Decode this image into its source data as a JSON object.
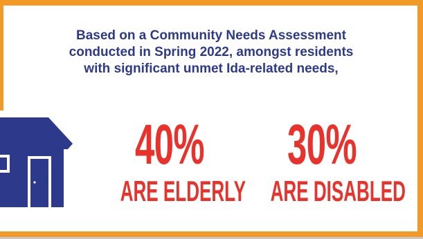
{
  "intro": {
    "line1": "Based on a Community Needs Assessment",
    "line2": "conducted in Spring 2022, amongst residents",
    "line3": "with significant unmet Ida-related needs,"
  },
  "stats": [
    {
      "percent": "40%",
      "label": "ARE ELDERLY",
      "value": 40
    },
    {
      "percent": "30%",
      "label": "ARE DISABLED",
      "value": 30
    }
  ],
  "colors": {
    "border": "#f29a27",
    "text_blue": "#2d3a8c",
    "stat_red": "#e8322b",
    "house": "#2d3a8c"
  },
  "icons": {
    "house": "house-icon"
  }
}
